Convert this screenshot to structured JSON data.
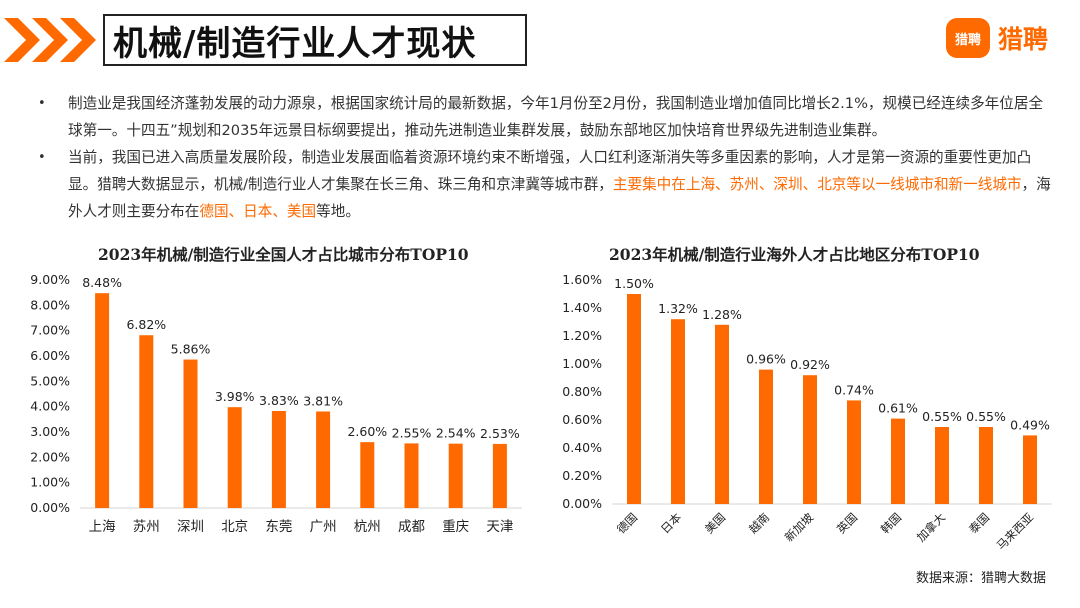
{
  "header": {
    "title": "机械/制造行业人才现状",
    "logo_badge": "猎聘",
    "logo_text": "猎聘",
    "colors": {
      "accent": "#ff6a00",
      "bar": "#ff6a00"
    }
  },
  "bullets": [
    {
      "segments": [
        {
          "text": "制造业是我国经济蓬勃发展的动力源泉，根据国家统计局的最新数据，今年1月份至2月份，我国制造业增加值同比增长2.1%，规模已经连续多年位居全球第一。十四五”规划和2035年远景目标纲要提出，推动先进制造业集群发展，鼓励东部地区加快培育世界级先进制造业集群。",
          "highlight": false
        }
      ]
    },
    {
      "segments": [
        {
          "text": "当前，我国已进入高质量发展阶段，制造业发展面临着资源环境约束不断增强，人口红利逐渐消失等多重因素的影响，人才是第一资源的重要性更加凸显。猎聘大数据显示，机械/制造行业人才集聚在长三角、珠三角和京津冀等城市群，",
          "highlight": false
        },
        {
          "text": "主要集中在上海、苏州、深圳、北京等以一线城市和新一线城市",
          "highlight": true
        },
        {
          "text": "，海外人才则主要分布在",
          "highlight": false
        },
        {
          "text": "德国、日本、美国",
          "highlight": true
        },
        {
          "text": "等地。",
          "highlight": false
        }
      ]
    }
  ],
  "chart_data": [
    {
      "type": "bar",
      "title": "2023年机械/制造行业全国人才占比城市分布TOP10",
      "categories": [
        "上海",
        "苏州",
        "深圳",
        "北京",
        "东莞",
        "广州",
        "杭州",
        "成都",
        "重庆",
        "天津"
      ],
      "values": [
        8.48,
        6.82,
        5.86,
        3.98,
        3.83,
        3.81,
        2.6,
        2.55,
        2.54,
        2.53
      ],
      "value_labels": [
        "8.48%",
        "6.82%",
        "5.86%",
        "3.98%",
        "3.83%",
        "3.81%",
        "2.60%",
        "2.55%",
        "2.54%",
        "2.53%"
      ],
      "yticks": [
        "0.00%",
        "1.00%",
        "2.00%",
        "3.00%",
        "4.00%",
        "5.00%",
        "6.00%",
        "7.00%",
        "8.00%",
        "9.00%"
      ],
      "ylim": [
        0,
        9
      ],
      "xlabel": "",
      "ylabel": "",
      "grid": false
    },
    {
      "type": "bar",
      "title": "2023年机械/制造行业海外人才占比地区分布TOP10",
      "categories": [
        "德国",
        "日本",
        "美国",
        "越南",
        "新加坡",
        "英国",
        "韩国",
        "加拿大",
        "泰国",
        "马来西亚"
      ],
      "values": [
        1.5,
        1.32,
        1.28,
        0.96,
        0.92,
        0.74,
        0.61,
        0.55,
        0.55,
        0.49
      ],
      "value_labels": [
        "1.50%",
        "1.32%",
        "1.28%",
        "0.96%",
        "0.92%",
        "0.74%",
        "0.61%",
        "0.55%",
        "0.55%",
        "0.49%"
      ],
      "yticks": [
        "0.00%",
        "0.20%",
        "0.40%",
        "0.60%",
        "0.80%",
        "1.00%",
        "1.20%",
        "1.40%",
        "1.60%"
      ],
      "ylim": [
        0,
        1.6
      ],
      "xlabel": "",
      "ylabel": "",
      "grid": false
    }
  ],
  "footer": {
    "source": "数据来源：猎聘大数据"
  }
}
